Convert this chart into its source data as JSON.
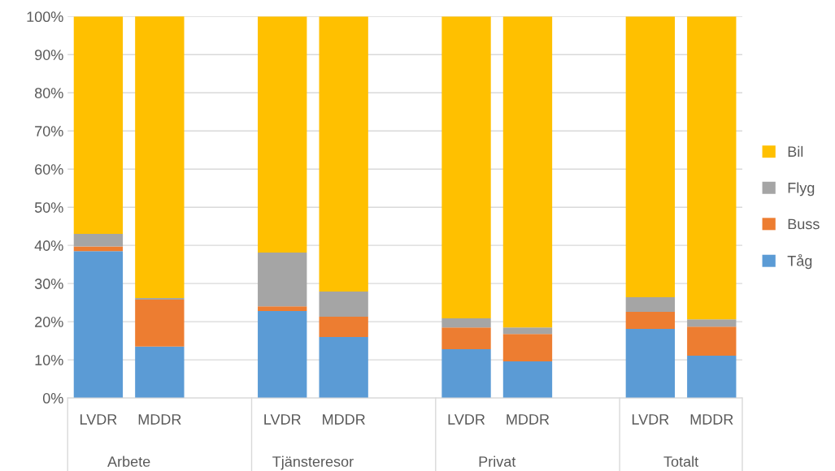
{
  "chart_data": {
    "type": "bar",
    "stacked": true,
    "categories": [
      "LVDR",
      "MDDR",
      null,
      "LVDR",
      "MDDR",
      null,
      "LVDR",
      "MDDR",
      null,
      "LVDR",
      "MDDR"
    ],
    "series": [
      {
        "name": "Tåg",
        "color": "#5b9bd5",
        "values": [
          38.5,
          13.5,
          null,
          22.8,
          16.0,
          null,
          12.8,
          9.6,
          null,
          18.1,
          11.1
        ]
      },
      {
        "name": "Buss",
        "color": "#ed7d31",
        "values": [
          1.2,
          12.3,
          null,
          1.2,
          5.3,
          null,
          5.7,
          7.2,
          null,
          4.5,
          7.6
        ]
      },
      {
        "name": "Flyg",
        "color": "#a5a5a5",
        "values": [
          3.3,
          0.4,
          null,
          14.1,
          6.6,
          null,
          2.4,
          1.7,
          null,
          3.8,
          1.9
        ]
      },
      {
        "name": "Bil",
        "color": "#ffc000",
        "values": [
          57.0,
          74.0,
          null,
          61.9,
          72.1,
          null,
          79.1,
          81.5,
          null,
          73.6,
          79.4
        ]
      }
    ],
    "ylim": [
      0,
      100
    ],
    "yticks": [
      {
        "value": 0,
        "label": "0%"
      },
      {
        "value": 10,
        "label": "10%"
      },
      {
        "value": 20,
        "label": "20%"
      },
      {
        "value": 30,
        "label": "30%"
      },
      {
        "value": 40,
        "label": "40%"
      },
      {
        "value": 50,
        "label": "50%"
      },
      {
        "value": 60,
        "label": "60%"
      },
      {
        "value": 70,
        "label": "70%"
      },
      {
        "value": 80,
        "label": "80%"
      },
      {
        "value": 90,
        "label": "90%"
      },
      {
        "value": 100,
        "label": "100%"
      }
    ],
    "annotations": [
      "Arbete",
      "Tjänsteresor",
      "Privat",
      "Totalt"
    ],
    "grid": "y",
    "legend": "right"
  }
}
